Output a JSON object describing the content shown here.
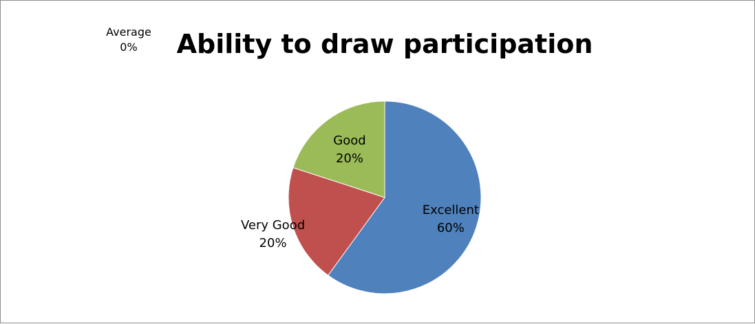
{
  "chart_data": {
    "type": "pie",
    "title": "Ability to draw participation",
    "slices": [
      {
        "name": "Excellent",
        "value": 60,
        "label": "60%",
        "color": "#4f81bd"
      },
      {
        "name": "Very Good",
        "value": 20,
        "label": "20%",
        "color": "#c0504d"
      },
      {
        "name": "Good",
        "value": 20,
        "label": "20%",
        "color": "#9bbb59"
      },
      {
        "name": "Average",
        "value": 0,
        "label": "0%",
        "color": "#8064a2"
      }
    ],
    "start_angle_deg": 0,
    "direction": "clockwise",
    "legend": "none",
    "data_labels": "category-and-percent"
  }
}
